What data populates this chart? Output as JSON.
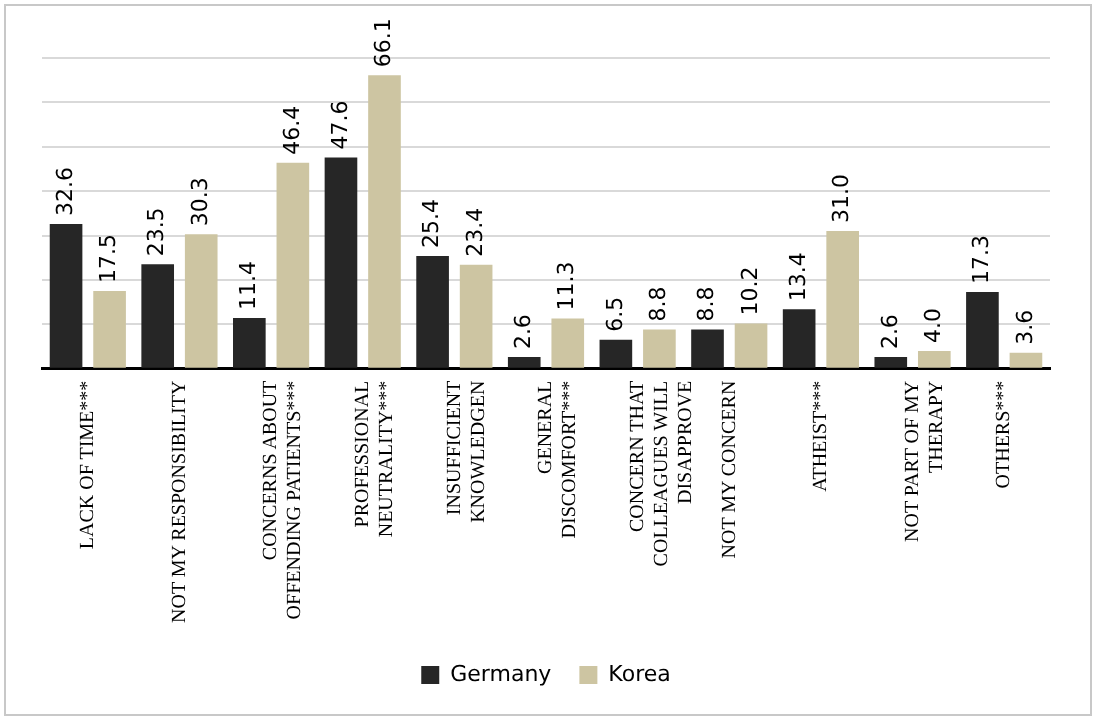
{
  "chart_data": {
    "type": "bar",
    "categories": [
      "LACK OF TIME***",
      "NOT MY RESPONSIBILITY",
      "CONCERNS ABOUT\nOFFENDING PATIENTS***",
      "PROFESSIONAL\nNEUTRALITY***",
      "INSUFFICIENT\nKNOWLEDGEN",
      "GENERAL\nDISCOMFORT***",
      "CONCERN THAT\nCOLLEAGUES WILL\nDISAPPROVE",
      "NOT MY CONCERN",
      "ATHEIST***",
      "NOT PART OF MY\nTHERAPY",
      "OTHERS***"
    ],
    "series": [
      {
        "name": "Germany",
        "color": "#262626",
        "values": [
          32.6,
          23.5,
          11.4,
          47.6,
          25.4,
          2.6,
          6.5,
          8.8,
          13.4,
          2.6,
          17.3
        ],
        "value_labels": [
          "32.6",
          "23.5",
          "11.4",
          "47.6",
          "25.4",
          "2.6",
          "6.5",
          "8.8",
          "13.4",
          "2.6",
          "17.3"
        ]
      },
      {
        "name": "Korea",
        "color": "#cdc5a2",
        "values": [
          17.5,
          30.3,
          46.4,
          66.1,
          23.4,
          11.3,
          8.8,
          10.2,
          31.0,
          4.0,
          3.6
        ],
        "value_labels": [
          "17.5",
          "30.3",
          "46.4",
          "66.1",
          "23.4",
          "11.3",
          "8.8",
          "10.2",
          "31.0",
          "4.0",
          "3.6"
        ]
      }
    ],
    "ylim": [
      0,
      70
    ],
    "yticks": [
      0,
      10,
      20,
      30,
      40,
      50,
      60,
      70
    ],
    "tick_labels": "x",
    "grid": "y",
    "legend": "bottom"
  }
}
